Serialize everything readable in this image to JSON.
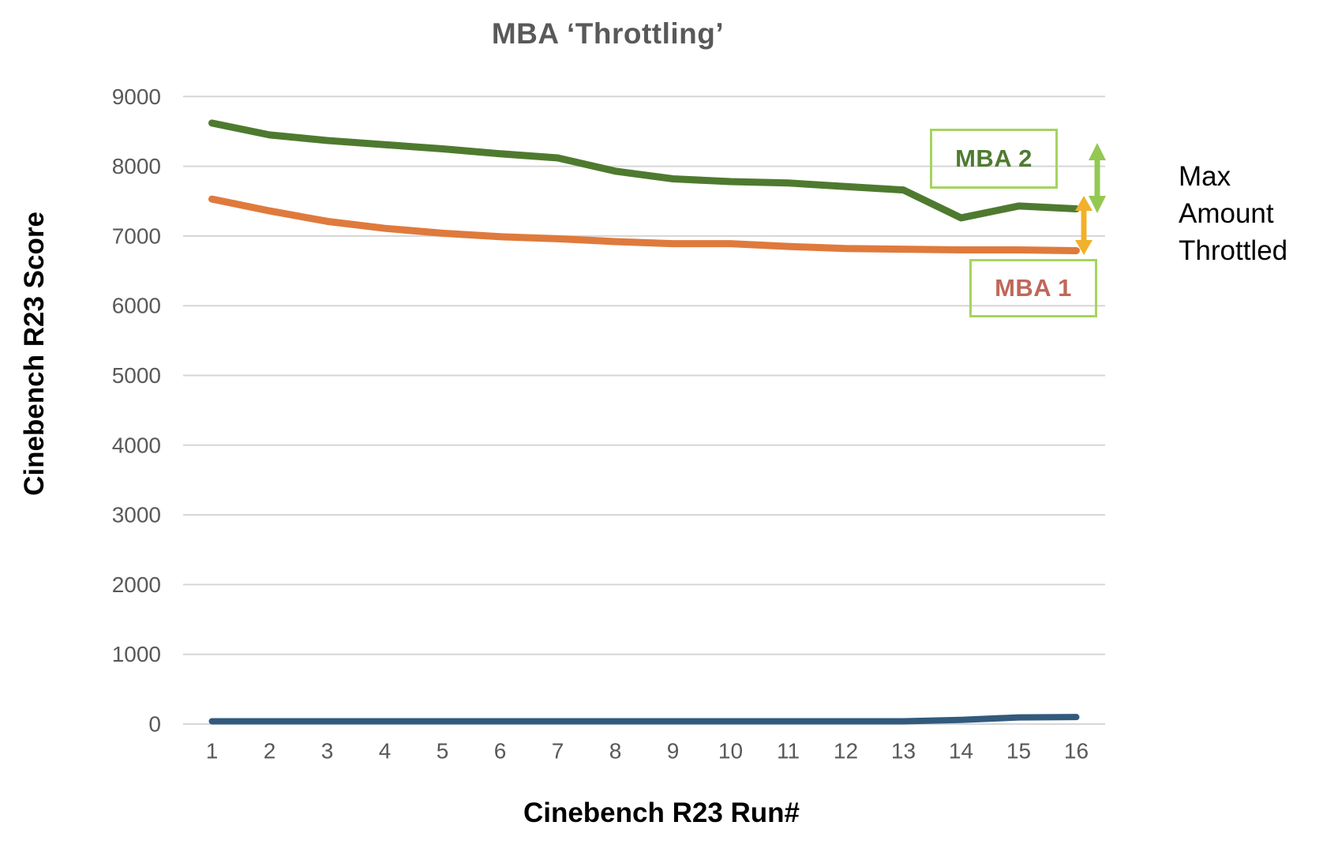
{
  "title": {
    "text": "MBA ‘Throttling’",
    "color": "#595959"
  },
  "axes": {
    "y_title": "Cinebench R23 Score",
    "x_title": "Cinebench R23 Run#",
    "tick_color": "#595959",
    "grid_color": "#d6d6d6"
  },
  "annotations": {
    "max_throttled": {
      "lines": [
        "Max",
        "Amount",
        "Throttled"
      ],
      "color": "#000000"
    },
    "mba2_label": {
      "text": "MBA 2",
      "text_color": "#4e7b31",
      "border_color": "#a5d45e"
    },
    "mba1_label": {
      "text": "MBA 1",
      "text_color": "#bf675a",
      "border_color": "#a5d45e"
    },
    "arrow_green_color": "#94c853",
    "arrow_yellow_color": "#f0b12c"
  },
  "chart_data": {
    "type": "line",
    "title": "MBA ‘Throttling’",
    "xlabel": "Cinebench R23 Run#",
    "ylabel": "Cinebench R23 Score",
    "x": [
      1,
      2,
      3,
      4,
      5,
      6,
      7,
      8,
      9,
      10,
      11,
      12,
      13,
      14,
      15,
      16
    ],
    "ylim": [
      0,
      9000
    ],
    "y_tick_step": 1000,
    "grid": true,
    "legend_position": "annotated boxes inside plot, right side",
    "series": [
      {
        "name": "MBA 2",
        "color": "#4e7a2f",
        "values": [
          8620,
          8450,
          8370,
          8310,
          8250,
          8180,
          8120,
          7930,
          7820,
          7780,
          7760,
          7710,
          7660,
          7260,
          7430,
          7390
        ]
      },
      {
        "name": "MBA 1",
        "color": "#df7a3c",
        "values": [
          7530,
          7360,
          7210,
          7110,
          7040,
          6990,
          6960,
          6920,
          6890,
          6890,
          6850,
          6820,
          6810,
          6800,
          6800,
          6790
        ]
      },
      {
        "name": "",
        "color": "#315a7d",
        "values": [
          40,
          40,
          40,
          40,
          40,
          40,
          40,
          40,
          40,
          40,
          40,
          40,
          40,
          60,
          95,
          100
        ]
      }
    ]
  }
}
